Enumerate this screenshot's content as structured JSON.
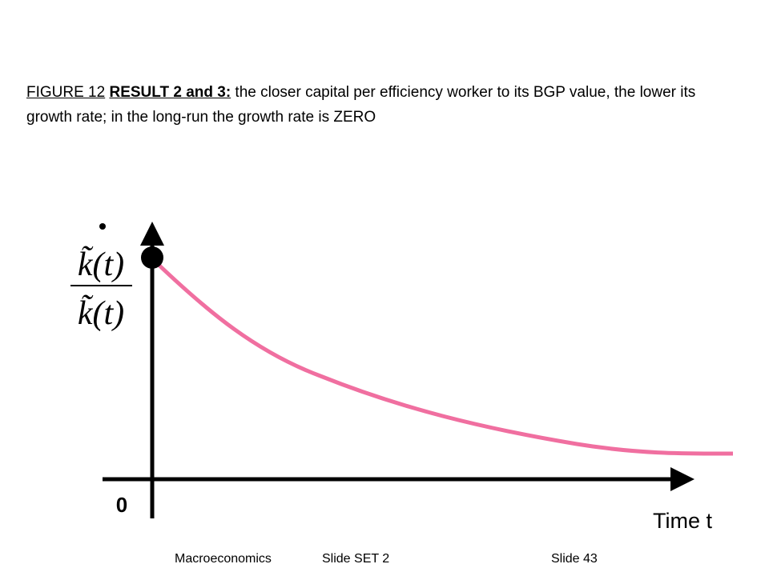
{
  "caption": {
    "figure": "FIGURE 12",
    "result": "RESULT 2 and 3:",
    "text": " the closer capital per efficiency worker to its BGP value, the lower its growth rate; in the long-run the growth rate is ZERO"
  },
  "axes": {
    "y_label_numerator": "k̃(t)",
    "y_label_denominator": "k̃(t)",
    "origin": "0",
    "x_label": "Time t"
  },
  "footer": {
    "course": "Macroeconomics",
    "set": "Slide SET 2",
    "slide": "Slide 43"
  }
}
